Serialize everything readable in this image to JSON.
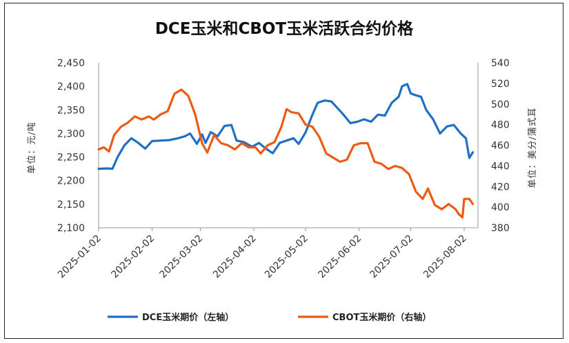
{
  "chart_data": {
    "type": "line",
    "title": "DCE玉米和CBOT玉米活跃合约价格",
    "ylabel_left": "单位：元/吨",
    "ylabel_right": "单位：美分/蒲式耳",
    "x_ticks": [
      "2025-01-02",
      "2025-02-02",
      "2025-03-02",
      "2025-04-02",
      "2025-05-02",
      "2025-06-02",
      "2025-07-02",
      "2025-08-02"
    ],
    "y_left": {
      "min": 2100,
      "max": 2450,
      "ticks": [
        "2,100",
        "2,150",
        "2,200",
        "2,250",
        "2,300",
        "2,350",
        "2,400",
        "2,450"
      ]
    },
    "y_right": {
      "min": 380,
      "max": 540,
      "ticks": [
        "380",
        "400",
        "420",
        "440",
        "460",
        "480",
        "500",
        "520",
        "540"
      ]
    },
    "legend_position": "bottom",
    "series": [
      {
        "name": "DCE玉米期价（左轴）",
        "axis": "left",
        "color": "#1f6fc6",
        "points": [
          [
            "2025-01-02",
            2225
          ],
          [
            "2025-01-07",
            2226
          ],
          [
            "2025-01-10",
            2225
          ],
          [
            "2025-01-13",
            2250
          ],
          [
            "2025-01-17",
            2275
          ],
          [
            "2025-01-21",
            2290
          ],
          [
            "2025-01-25",
            2280
          ],
          [
            "2025-01-29",
            2268
          ],
          [
            "2025-02-02",
            2284
          ],
          [
            "2025-02-07",
            2285
          ],
          [
            "2025-02-12",
            2286
          ],
          [
            "2025-02-17",
            2290
          ],
          [
            "2025-02-21",
            2294
          ],
          [
            "2025-02-24",
            2300
          ],
          [
            "2025-02-28",
            2278
          ],
          [
            "2025-03-03",
            2298
          ],
          [
            "2025-03-05",
            2280
          ],
          [
            "2025-03-08",
            2303
          ],
          [
            "2025-03-12",
            2294
          ],
          [
            "2025-03-16",
            2316
          ],
          [
            "2025-03-20",
            2318
          ],
          [
            "2025-03-23",
            2285
          ],
          [
            "2025-03-27",
            2282
          ],
          [
            "2025-04-01",
            2272
          ],
          [
            "2025-04-05",
            2280
          ],
          [
            "2025-04-09",
            2268
          ],
          [
            "2025-04-13",
            2258
          ],
          [
            "2025-04-17",
            2280
          ],
          [
            "2025-04-21",
            2285
          ],
          [
            "2025-04-25",
            2290
          ],
          [
            "2025-04-28",
            2278
          ],
          [
            "2025-05-02",
            2302
          ],
          [
            "2025-05-06",
            2340
          ],
          [
            "2025-05-09",
            2365
          ],
          [
            "2025-05-13",
            2370
          ],
          [
            "2025-05-17",
            2368
          ],
          [
            "2025-05-21",
            2352
          ],
          [
            "2025-05-24",
            2340
          ],
          [
            "2025-05-28",
            2322
          ],
          [
            "2025-06-01",
            2325
          ],
          [
            "2025-06-05",
            2330
          ],
          [
            "2025-06-09",
            2325
          ],
          [
            "2025-06-13",
            2340
          ],
          [
            "2025-06-17",
            2338
          ],
          [
            "2025-06-21",
            2365
          ],
          [
            "2025-06-25",
            2378
          ],
          [
            "2025-06-27",
            2400
          ],
          [
            "2025-06-30",
            2405
          ],
          [
            "2025-07-02",
            2385
          ],
          [
            "2025-07-05",
            2381
          ],
          [
            "2025-07-08",
            2378
          ],
          [
            "2025-07-11",
            2350
          ],
          [
            "2025-07-15",
            2330
          ],
          [
            "2025-07-19",
            2300
          ],
          [
            "2025-07-23",
            2315
          ],
          [
            "2025-07-27",
            2318
          ],
          [
            "2025-07-31",
            2300
          ],
          [
            "2025-08-03",
            2290
          ],
          [
            "2025-08-05",
            2248
          ],
          [
            "2025-08-07",
            2260
          ]
        ]
      },
      {
        "name": "CBOT玉米期价（右轴）",
        "axis": "right",
        "color": "#ee5a11",
        "points": [
          [
            "2025-01-02",
            456
          ],
          [
            "2025-01-05",
            458
          ],
          [
            "2025-01-08",
            454
          ],
          [
            "2025-01-11",
            470
          ],
          [
            "2025-01-15",
            478
          ],
          [
            "2025-01-19",
            482
          ],
          [
            "2025-01-23",
            488
          ],
          [
            "2025-01-27",
            485
          ],
          [
            "2025-01-31",
            488
          ],
          [
            "2025-02-03",
            485
          ],
          [
            "2025-02-07",
            490
          ],
          [
            "2025-02-11",
            493
          ],
          [
            "2025-02-15",
            510
          ],
          [
            "2025-02-19",
            514
          ],
          [
            "2025-02-23",
            508
          ],
          [
            "2025-02-27",
            490
          ],
          [
            "2025-03-03",
            462
          ],
          [
            "2025-03-06",
            453
          ],
          [
            "2025-03-10",
            470
          ],
          [
            "2025-03-14",
            462
          ],
          [
            "2025-03-18",
            460
          ],
          [
            "2025-03-22",
            456
          ],
          [
            "2025-03-26",
            462
          ],
          [
            "2025-03-30",
            458
          ],
          [
            "2025-04-03",
            458
          ],
          [
            "2025-04-06",
            452
          ],
          [
            "2025-04-10",
            460
          ],
          [
            "2025-04-14",
            463
          ],
          [
            "2025-04-18",
            478
          ],
          [
            "2025-04-21",
            495
          ],
          [
            "2025-04-24",
            492
          ],
          [
            "2025-04-28",
            491
          ],
          [
            "2025-05-02",
            480
          ],
          [
            "2025-05-06",
            478
          ],
          [
            "2025-05-10",
            468
          ],
          [
            "2025-05-14",
            452
          ],
          [
            "2025-05-18",
            448
          ],
          [
            "2025-05-22",
            444
          ],
          [
            "2025-05-26",
            446
          ],
          [
            "2025-05-30",
            460
          ],
          [
            "2025-06-03",
            462
          ],
          [
            "2025-06-07",
            462
          ],
          [
            "2025-06-11",
            444
          ],
          [
            "2025-06-15",
            442
          ],
          [
            "2025-06-19",
            437
          ],
          [
            "2025-06-23",
            440
          ],
          [
            "2025-06-27",
            438
          ],
          [
            "2025-07-01",
            432
          ],
          [
            "2025-07-05",
            415
          ],
          [
            "2025-07-09",
            408
          ],
          [
            "2025-07-12",
            418
          ],
          [
            "2025-07-16",
            402
          ],
          [
            "2025-07-20",
            398
          ],
          [
            "2025-07-24",
            403
          ],
          [
            "2025-07-28",
            398
          ],
          [
            "2025-07-30",
            393
          ],
          [
            "2025-08-01",
            390
          ],
          [
            "2025-08-02",
            408
          ],
          [
            "2025-08-05",
            408
          ],
          [
            "2025-08-07",
            403
          ]
        ]
      }
    ]
  }
}
